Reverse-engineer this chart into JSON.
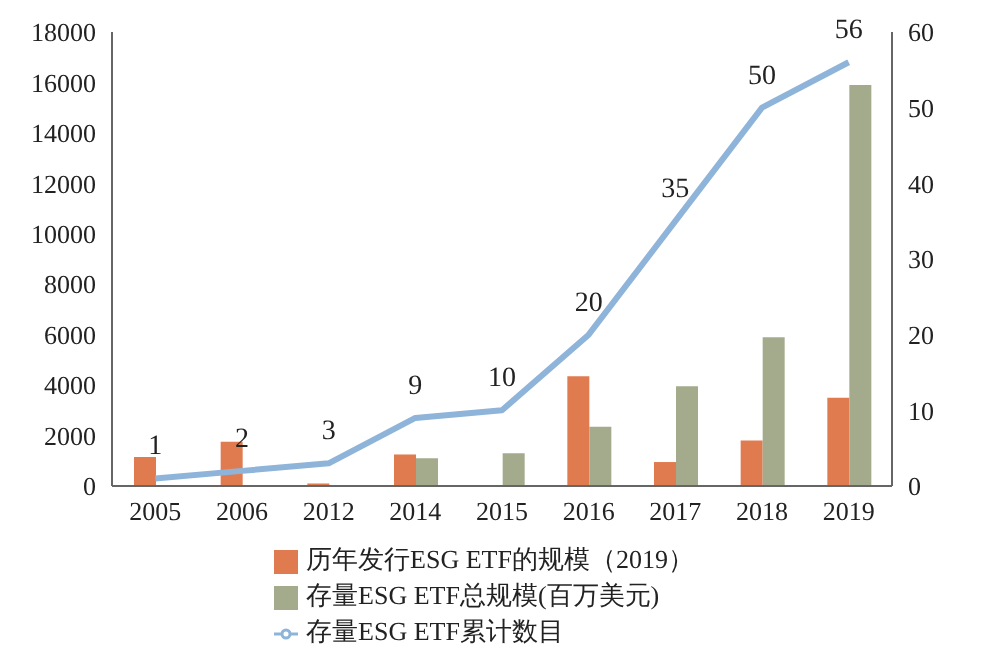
{
  "chart_data": {
    "type": "bar",
    "categories": [
      "2005",
      "2006",
      "2012",
      "2014",
      "2015",
      "2016",
      "2017",
      "2018",
      "2019"
    ],
    "series": [
      {
        "name": "历年发行ESG ETF的规模（2019）",
        "color": "#e07b4f",
        "values": [
          1150,
          1750,
          100,
          1250,
          null,
          4350,
          950,
          1800,
          3500
        ]
      },
      {
        "name": "存量ESG ETF总规模(百万美元)",
        "color": "#a4ab8c",
        "values": [
          null,
          null,
          null,
          1100,
          1300,
          2350,
          3950,
          5900,
          15900
        ]
      },
      {
        "name": "存量ESG ETF累计数目",
        "type": "line",
        "axis": "y2",
        "color": "#8fb4d9",
        "values": [
          1,
          2,
          3,
          9,
          10,
          20,
          35,
          50,
          56
        ],
        "value_labels": [
          "1",
          "2",
          "3",
          "9",
          "10",
          "20",
          "35",
          "50",
          "56"
        ]
      }
    ],
    "ylim": [
      0,
      18000
    ],
    "yticks": [
      0,
      2000,
      4000,
      6000,
      8000,
      10000,
      12000,
      14000,
      16000,
      18000
    ],
    "y2lim": [
      0,
      60
    ],
    "y2ticks": [
      0,
      10,
      20,
      30,
      40,
      50,
      60
    ],
    "grid": false,
    "legend": "bottom",
    "marker": "none"
  }
}
